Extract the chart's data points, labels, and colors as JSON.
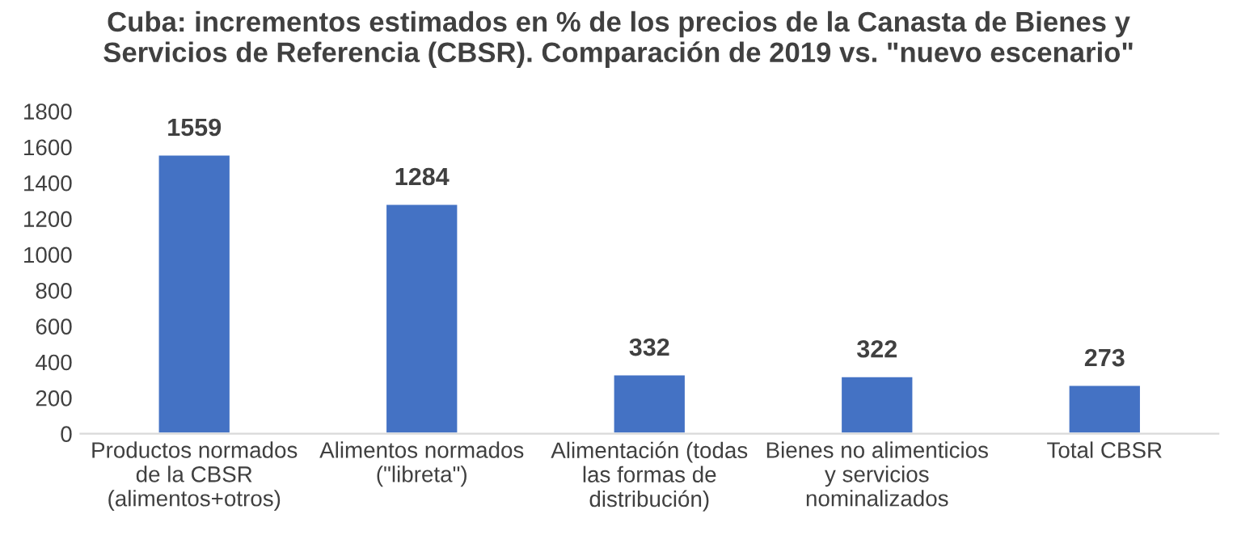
{
  "chart_data": {
    "type": "bar",
    "title": "Cuba: incrementos estimados en % de los precios de la Canasta de Bienes y\nServicios de Referencia (CBSR). Comparación de 2019 vs. \"nuevo escenario\"",
    "categories": [
      "Productos normados\nde la CBSR\n(alimentos+otros)",
      "Alimentos normados\n(\"libreta\")",
      "Alimentación (todas\nlas formas de\ndistribución)",
      "Bienes no alimenticios\ny servicios\nnominalizados",
      "Total CBSR"
    ],
    "values": [
      1559,
      1284,
      332,
      322,
      273
    ],
    "color": "#4472c4",
    "ylim": [
      0,
      1800
    ],
    "yticks": [
      0,
      200,
      400,
      600,
      800,
      1000,
      1200,
      1400,
      1600,
      1800
    ],
    "data_labels": true,
    "grid": false,
    "legend": false
  }
}
